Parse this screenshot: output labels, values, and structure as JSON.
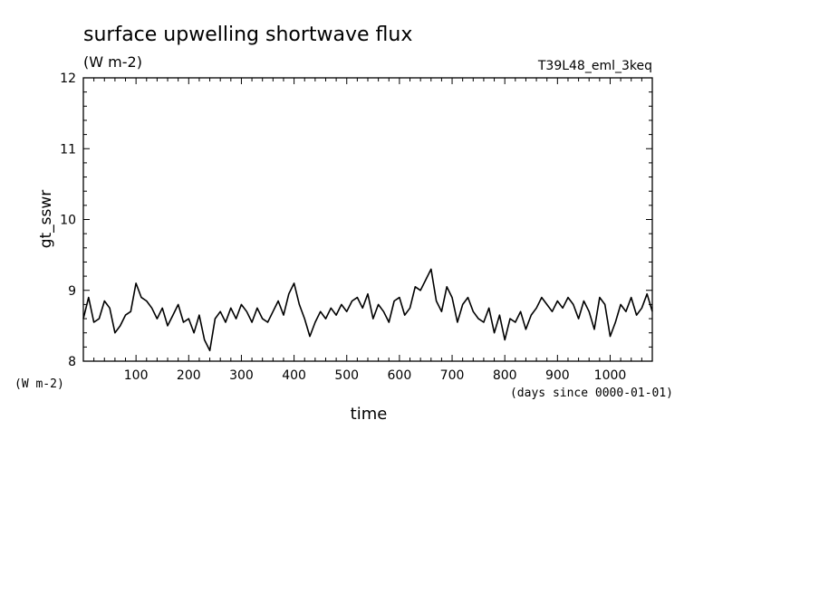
{
  "chart_data": {
    "type": "line",
    "title": "surface upwelling shortwave flux",
    "title_units": "(W m-2)",
    "run_label": "T39L48_eml_3keq",
    "ylabel": "gt_sswr",
    "y_units": "(W m-2)",
    "xlabel": "time",
    "x_units": "(days since 0000-01-01)",
    "xlim": [
      0,
      1080
    ],
    "ylim": [
      8,
      12
    ],
    "x_ticks": [
      "100",
      "200",
      "300",
      "400",
      "500",
      "600",
      "700",
      "800",
      "900",
      "1000"
    ],
    "y_ticks": [
      "8",
      "9",
      "10",
      "11",
      "12"
    ],
    "grid": false,
    "line_color": "#000000",
    "series": [
      {
        "x": [
          0,
          10,
          20,
          30,
          40,
          50,
          60,
          70,
          80,
          90,
          100,
          110,
          120,
          130,
          140,
          150,
          160,
          170,
          180,
          190,
          200,
          210,
          220,
          230,
          240,
          250,
          260,
          270,
          280,
          290,
          300,
          310,
          320,
          330,
          340,
          350,
          360,
          370,
          380,
          390,
          400,
          410,
          420,
          430,
          440,
          450,
          460,
          470,
          480,
          490,
          500,
          510,
          520,
          530,
          540,
          550,
          560,
          570,
          580,
          590,
          600,
          610,
          620,
          630,
          640,
          650,
          660,
          670,
          680,
          690,
          700,
          710,
          720,
          730,
          740,
          750,
          760,
          770,
          780,
          790,
          800,
          810,
          820,
          830,
          840,
          850,
          860,
          870,
          880,
          890,
          900,
          910,
          920,
          930,
          940,
          950,
          960,
          970,
          980,
          990,
          1000,
          1010,
          1020,
          1030,
          1040,
          1050,
          1060,
          1070,
          1080
        ],
        "values": [
          8.6,
          8.9,
          8.55,
          8.6,
          8.85,
          8.75,
          8.4,
          8.5,
          8.65,
          8.7,
          9.1,
          8.9,
          8.85,
          8.75,
          8.6,
          8.75,
          8.5,
          8.65,
          8.8,
          8.55,
          8.6,
          8.4,
          8.65,
          8.3,
          8.15,
          8.6,
          8.7,
          8.55,
          8.75,
          8.6,
          8.8,
          8.7,
          8.55,
          8.75,
          8.6,
          8.55,
          8.7,
          8.85,
          8.65,
          8.95,
          9.1,
          8.8,
          8.6,
          8.35,
          8.55,
          8.7,
          8.6,
          8.75,
          8.65,
          8.8,
          8.7,
          8.85,
          8.9,
          8.75,
          8.95,
          8.6,
          8.8,
          8.7,
          8.55,
          8.85,
          8.9,
          8.65,
          8.75,
          9.05,
          9.0,
          9.15,
          9.3,
          8.85,
          8.7,
          9.05,
          8.9,
          8.55,
          8.8,
          8.9,
          8.7,
          8.6,
          8.55,
          8.75,
          8.4,
          8.65,
          8.3,
          8.6,
          8.55,
          8.7,
          8.45,
          8.65,
          8.75,
          8.9,
          8.8,
          8.7,
          8.85,
          8.75,
          8.9,
          8.8,
          8.6,
          8.85,
          8.7,
          8.45,
          8.9,
          8.8,
          8.35,
          8.55,
          8.8,
          8.7,
          8.9,
          8.65,
          8.75,
          8.95,
          8.7
        ]
      }
    ]
  }
}
